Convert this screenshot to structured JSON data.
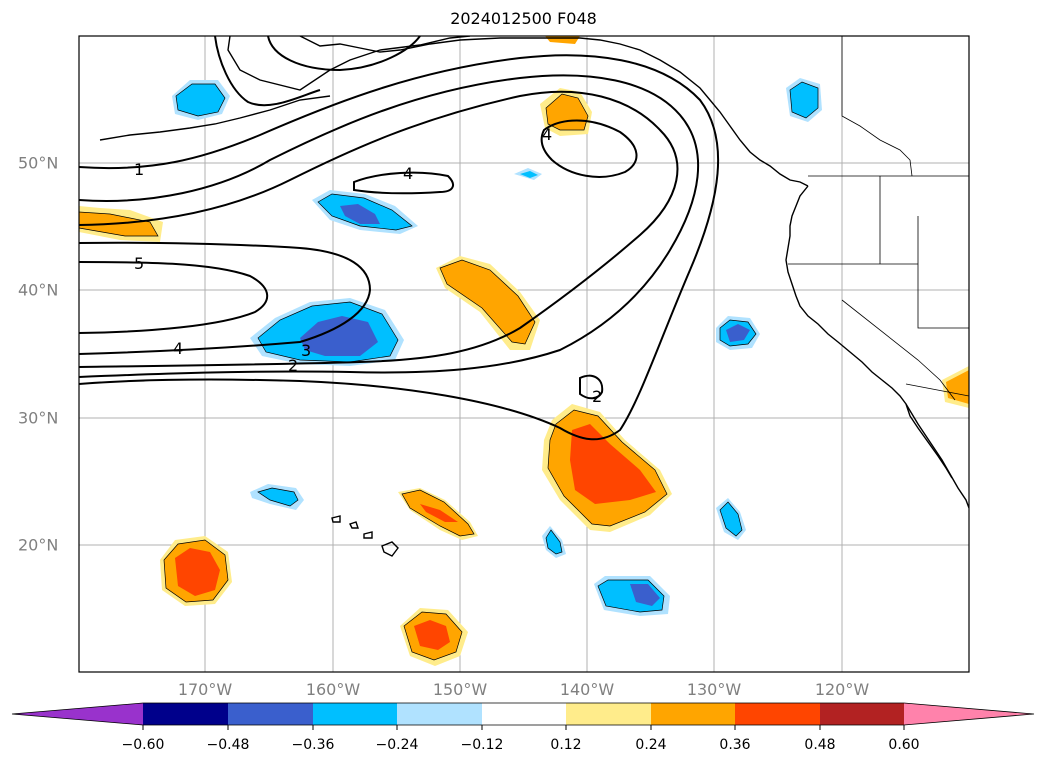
{
  "title": "2024012500 F048",
  "map": {
    "lon_ticks": [
      "170°W",
      "160°W",
      "150°W",
      "140°W",
      "130°W",
      "120°W"
    ],
    "lat_ticks": [
      "50°N",
      "40°N",
      "30°N",
      "20°N"
    ],
    "contour_labels": [
      "1",
      "5",
      "4",
      "3",
      "2",
      "4",
      "4",
      "2"
    ]
  },
  "colorbar": {
    "tick_labels": [
      "−0.60",
      "−0.48",
      "−0.36",
      "−0.24",
      "−0.12",
      "0.12",
      "0.24",
      "0.36",
      "0.48",
      "0.60"
    ],
    "colors": [
      "#9932cc",
      "#00008b",
      "#3a5fcd",
      "#00bfff",
      "#b0e2ff",
      "#ffffff",
      "#ffec8b",
      "#ffa500",
      "#ff4500",
      "#b22222",
      "#ff82ab"
    ]
  },
  "shading_colors": {
    "neg_light": "#b0e2ff",
    "neg_mid": "#00bfff",
    "neg_dark": "#3a5fcd",
    "pos_light": "#ffec8b",
    "pos_mid": "#ffa500",
    "pos_dark": "#ff4500"
  }
}
